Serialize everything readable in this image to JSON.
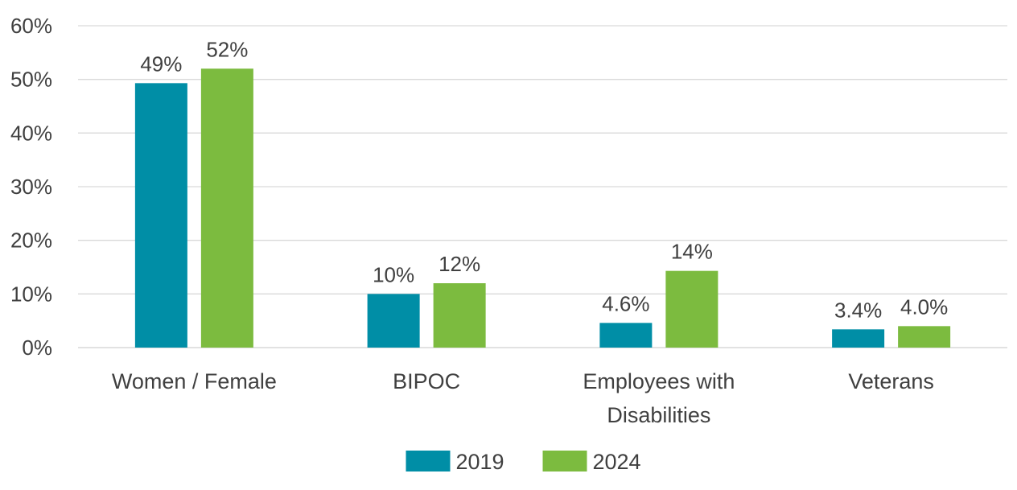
{
  "chart_data": {
    "type": "bar",
    "title": "",
    "xlabel": "",
    "ylabel": "",
    "ylim": [
      0,
      60
    ],
    "grid": true,
    "legend_position": "bottom",
    "y_ticks": [
      "0%",
      "10%",
      "20%",
      "30%",
      "40%",
      "50%",
      "60%"
    ],
    "categories": [
      [
        "Women / Female"
      ],
      [
        "BIPOC"
      ],
      [
        "Employees with",
        "Disabilities"
      ],
      [
        "Veterans"
      ]
    ],
    "series": [
      {
        "name": "2019",
        "color": "#008ea6",
        "values": [
          49.3,
          10.0,
          4.6,
          3.4
        ],
        "labels": [
          "49%",
          "10%",
          "4.6%",
          "3.4%"
        ]
      },
      {
        "name": "2024",
        "color": "#7cbb3f",
        "values": [
          52.0,
          12.0,
          14.3,
          4.0
        ],
        "labels": [
          "52%",
          "12%",
          "14%",
          "4.0%"
        ]
      }
    ]
  }
}
